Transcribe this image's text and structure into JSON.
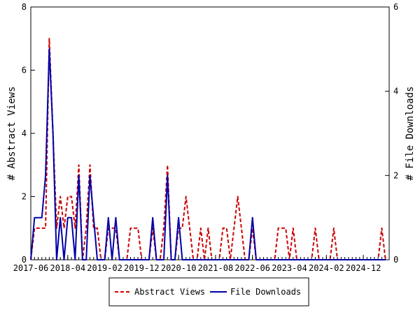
{
  "chart_data": {
    "type": "line",
    "title": "",
    "xlabel": "",
    "ylabel": "# Abstract Views",
    "y2label": "# File Downloads",
    "ylim": [
      0,
      8
    ],
    "y2lim": [
      0,
      6
    ],
    "yticks": [
      0,
      2,
      4,
      6,
      8
    ],
    "y2ticks": [
      0,
      2,
      4,
      6
    ],
    "x_tick_labels": [
      "2017-06",
      "2018-04",
      "2019-02",
      "2019-12",
      "2020-10",
      "2021-08",
      "2022-06",
      "2023-04",
      "2024-02",
      "2024-12"
    ],
    "x_start": "2017-06",
    "x_end": "2025-07",
    "grid": false,
    "legend_position": "bottom",
    "series": [
      {
        "name": "Abstract Views",
        "axis": "left",
        "color": "#cc0000",
        "style": "dashed",
        "values": [
          {
            "x": "2017-06",
            "y": 0
          },
          {
            "x": "2017-07",
            "y": 1
          },
          {
            "x": "2017-08",
            "y": 1
          },
          {
            "x": "2017-09",
            "y": 1
          },
          {
            "x": "2017-10",
            "y": 1
          },
          {
            "x": "2017-11",
            "y": 7
          },
          {
            "x": "2017-12",
            "y": 4
          },
          {
            "x": "2018-01",
            "y": 1
          },
          {
            "x": "2018-02",
            "y": 2
          },
          {
            "x": "2018-03",
            "y": 1
          },
          {
            "x": "2018-04",
            "y": 2
          },
          {
            "x": "2018-05",
            "y": 2
          },
          {
            "x": "2018-06",
            "y": 1
          },
          {
            "x": "2018-07",
            "y": 3
          },
          {
            "x": "2018-08",
            "y": 0
          },
          {
            "x": "2018-09",
            "y": 1
          },
          {
            "x": "2018-10",
            "y": 3
          },
          {
            "x": "2018-11",
            "y": 1
          },
          {
            "x": "2018-12",
            "y": 1
          },
          {
            "x": "2019-01",
            "y": 0
          },
          {
            "x": "2019-02",
            "y": 0
          },
          {
            "x": "2019-03",
            "y": 1
          },
          {
            "x": "2019-04",
            "y": 1
          },
          {
            "x": "2019-05",
            "y": 1
          },
          {
            "x": "2019-06",
            "y": 0
          },
          {
            "x": "2019-07",
            "y": 0
          },
          {
            "x": "2019-08",
            "y": 0
          },
          {
            "x": "2019-09",
            "y": 1
          },
          {
            "x": "2019-10",
            "y": 1
          },
          {
            "x": "2019-11",
            "y": 1
          },
          {
            "x": "2019-12",
            "y": 0
          },
          {
            "x": "2020-01",
            "y": 0
          },
          {
            "x": "2020-02",
            "y": 0
          },
          {
            "x": "2020-03",
            "y": 1
          },
          {
            "x": "2020-04",
            "y": 0
          },
          {
            "x": "2020-05",
            "y": 0
          },
          {
            "x": "2020-06",
            "y": 1
          },
          {
            "x": "2020-07",
            "y": 3
          },
          {
            "x": "2020-08",
            "y": 0
          },
          {
            "x": "2020-09",
            "y": 0
          },
          {
            "x": "2020-10",
            "y": 1
          },
          {
            "x": "2020-11",
            "y": 1
          },
          {
            "x": "2020-12",
            "y": 2
          },
          {
            "x": "2021-01",
            "y": 1
          },
          {
            "x": "2021-02",
            "y": 0
          },
          {
            "x": "2021-03",
            "y": 0
          },
          {
            "x": "2021-04",
            "y": 1
          },
          {
            "x": "2021-05",
            "y": 0
          },
          {
            "x": "2021-06",
            "y": 1
          },
          {
            "x": "2021-07",
            "y": 0
          },
          {
            "x": "2021-08",
            "y": 0
          },
          {
            "x": "2021-09",
            "y": 0
          },
          {
            "x": "2021-10",
            "y": 1
          },
          {
            "x": "2021-11",
            "y": 1
          },
          {
            "x": "2021-12",
            "y": 0
          },
          {
            "x": "2022-01",
            "y": 1
          },
          {
            "x": "2022-02",
            "y": 2
          },
          {
            "x": "2022-03",
            "y": 1
          },
          {
            "x": "2022-04",
            "y": 0
          },
          {
            "x": "2022-05",
            "y": 0
          },
          {
            "x": "2022-06",
            "y": 1
          },
          {
            "x": "2022-07",
            "y": 0
          },
          {
            "x": "2022-08",
            "y": 0
          },
          {
            "x": "2022-09",
            "y": 0
          },
          {
            "x": "2022-10",
            "y": 0
          },
          {
            "x": "2022-11",
            "y": 0
          },
          {
            "x": "2022-12",
            "y": 0
          },
          {
            "x": "2023-01",
            "y": 1
          },
          {
            "x": "2023-02",
            "y": 1
          },
          {
            "x": "2023-03",
            "y": 1
          },
          {
            "x": "2023-04",
            "y": 0
          },
          {
            "x": "2023-05",
            "y": 1
          },
          {
            "x": "2023-06",
            "y": 0
          },
          {
            "x": "2023-07",
            "y": 0
          },
          {
            "x": "2023-08",
            "y": 0
          },
          {
            "x": "2023-09",
            "y": 0
          },
          {
            "x": "2023-10",
            "y": 0
          },
          {
            "x": "2023-11",
            "y": 1
          },
          {
            "x": "2023-12",
            "y": 0
          },
          {
            "x": "2024-01",
            "y": 0
          },
          {
            "x": "2024-02",
            "y": 0
          },
          {
            "x": "2024-03",
            "y": 0
          },
          {
            "x": "2024-04",
            "y": 1
          },
          {
            "x": "2024-05",
            "y": 0
          },
          {
            "x": "2024-06",
            "y": 0
          },
          {
            "x": "2024-07",
            "y": 0
          },
          {
            "x": "2024-08",
            "y": 0
          },
          {
            "x": "2024-09",
            "y": 0
          },
          {
            "x": "2024-10",
            "y": 0
          },
          {
            "x": "2024-11",
            "y": 0
          },
          {
            "x": "2024-12",
            "y": 0
          },
          {
            "x": "2025-01",
            "y": 0
          },
          {
            "x": "2025-02",
            "y": 0
          },
          {
            "x": "2025-03",
            "y": 0
          },
          {
            "x": "2025-04",
            "y": 0
          },
          {
            "x": "2025-05",
            "y": 1
          },
          {
            "x": "2025-06",
            "y": 0
          }
        ]
      },
      {
        "name": "File Downloads",
        "axis": "right",
        "color": "#0000aa",
        "style": "solid",
        "values": [
          {
            "x": "2017-06",
            "y": 0
          },
          {
            "x": "2017-07",
            "y": 1
          },
          {
            "x": "2017-08",
            "y": 1
          },
          {
            "x": "2017-09",
            "y": 1
          },
          {
            "x": "2017-10",
            "y": 2
          },
          {
            "x": "2017-11",
            "y": 5
          },
          {
            "x": "2017-12",
            "y": 3
          },
          {
            "x": "2018-01",
            "y": 0
          },
          {
            "x": "2018-02",
            "y": 1
          },
          {
            "x": "2018-03",
            "y": 0
          },
          {
            "x": "2018-04",
            "y": 1
          },
          {
            "x": "2018-05",
            "y": 1
          },
          {
            "x": "2018-06",
            "y": 0
          },
          {
            "x": "2018-07",
            "y": 2
          },
          {
            "x": "2018-08",
            "y": 0
          },
          {
            "x": "2018-09",
            "y": 0
          },
          {
            "x": "2018-10",
            "y": 2
          },
          {
            "x": "2018-11",
            "y": 1
          },
          {
            "x": "2018-12",
            "y": 0
          },
          {
            "x": "2019-01",
            "y": 0
          },
          {
            "x": "2019-02",
            "y": 0
          },
          {
            "x": "2019-03",
            "y": 1
          },
          {
            "x": "2019-04",
            "y": 0
          },
          {
            "x": "2019-05",
            "y": 1
          },
          {
            "x": "2019-06",
            "y": 0
          },
          {
            "x": "2019-07",
            "y": 0
          },
          {
            "x": "2019-08",
            "y": 0
          },
          {
            "x": "2019-09",
            "y": 0
          },
          {
            "x": "2019-10",
            "y": 0
          },
          {
            "x": "2019-11",
            "y": 0
          },
          {
            "x": "2019-12",
            "y": 0
          },
          {
            "x": "2020-01",
            "y": 0
          },
          {
            "x": "2020-02",
            "y": 0
          },
          {
            "x": "2020-03",
            "y": 1
          },
          {
            "x": "2020-04",
            "y": 0
          },
          {
            "x": "2020-05",
            "y": 0
          },
          {
            "x": "2020-06",
            "y": 0
          },
          {
            "x": "2020-07",
            "y": 2
          },
          {
            "x": "2020-08",
            "y": 0
          },
          {
            "x": "2020-09",
            "y": 0
          },
          {
            "x": "2020-10",
            "y": 1
          },
          {
            "x": "2020-11",
            "y": 0
          },
          {
            "x": "2020-12",
            "y": 0
          },
          {
            "x": "2021-01",
            "y": 0
          },
          {
            "x": "2021-02",
            "y": 0
          },
          {
            "x": "2021-03",
            "y": 0
          },
          {
            "x": "2021-04",
            "y": 0
          },
          {
            "x": "2021-05",
            "y": 0
          },
          {
            "x": "2021-06",
            "y": 0
          },
          {
            "x": "2021-07",
            "y": 0
          },
          {
            "x": "2021-08",
            "y": 0
          },
          {
            "x": "2021-09",
            "y": 0
          },
          {
            "x": "2021-10",
            "y": 0
          },
          {
            "x": "2021-11",
            "y": 0
          },
          {
            "x": "2021-12",
            "y": 0
          },
          {
            "x": "2022-01",
            "y": 0
          },
          {
            "x": "2022-02",
            "y": 0
          },
          {
            "x": "2022-03",
            "y": 0
          },
          {
            "x": "2022-04",
            "y": 0
          },
          {
            "x": "2022-05",
            "y": 0
          },
          {
            "x": "2022-06",
            "y": 1
          },
          {
            "x": "2022-07",
            "y": 0
          },
          {
            "x": "2022-08",
            "y": 0
          },
          {
            "x": "2022-09",
            "y": 0
          },
          {
            "x": "2022-10",
            "y": 0
          },
          {
            "x": "2022-11",
            "y": 0
          },
          {
            "x": "2022-12",
            "y": 0
          },
          {
            "x": "2023-01",
            "y": 0
          },
          {
            "x": "2023-02",
            "y": 0
          },
          {
            "x": "2023-03",
            "y": 0
          },
          {
            "x": "2023-04",
            "y": 0
          },
          {
            "x": "2023-05",
            "y": 0
          },
          {
            "x": "2023-06",
            "y": 0
          },
          {
            "x": "2023-07",
            "y": 0
          },
          {
            "x": "2023-08",
            "y": 0
          },
          {
            "x": "2023-09",
            "y": 0
          },
          {
            "x": "2023-10",
            "y": 0
          },
          {
            "x": "2023-11",
            "y": 0
          },
          {
            "x": "2023-12",
            "y": 0
          },
          {
            "x": "2024-01",
            "y": 0
          },
          {
            "x": "2024-02",
            "y": 0
          },
          {
            "x": "2024-03",
            "y": 0
          },
          {
            "x": "2024-04",
            "y": 0
          },
          {
            "x": "2024-05",
            "y": 0
          },
          {
            "x": "2024-06",
            "y": 0
          },
          {
            "x": "2024-07",
            "y": 0
          },
          {
            "x": "2024-08",
            "y": 0
          },
          {
            "x": "2024-09",
            "y": 0
          },
          {
            "x": "2024-10",
            "y": 0
          },
          {
            "x": "2024-11",
            "y": 0
          },
          {
            "x": "2024-12",
            "y": 0
          },
          {
            "x": "2025-01",
            "y": 0
          },
          {
            "x": "2025-02",
            "y": 0
          },
          {
            "x": "2025-03",
            "y": 0
          },
          {
            "x": "2025-04",
            "y": 0
          },
          {
            "x": "2025-05",
            "y": 0
          },
          {
            "x": "2025-06",
            "y": 0
          }
        ]
      }
    ]
  }
}
